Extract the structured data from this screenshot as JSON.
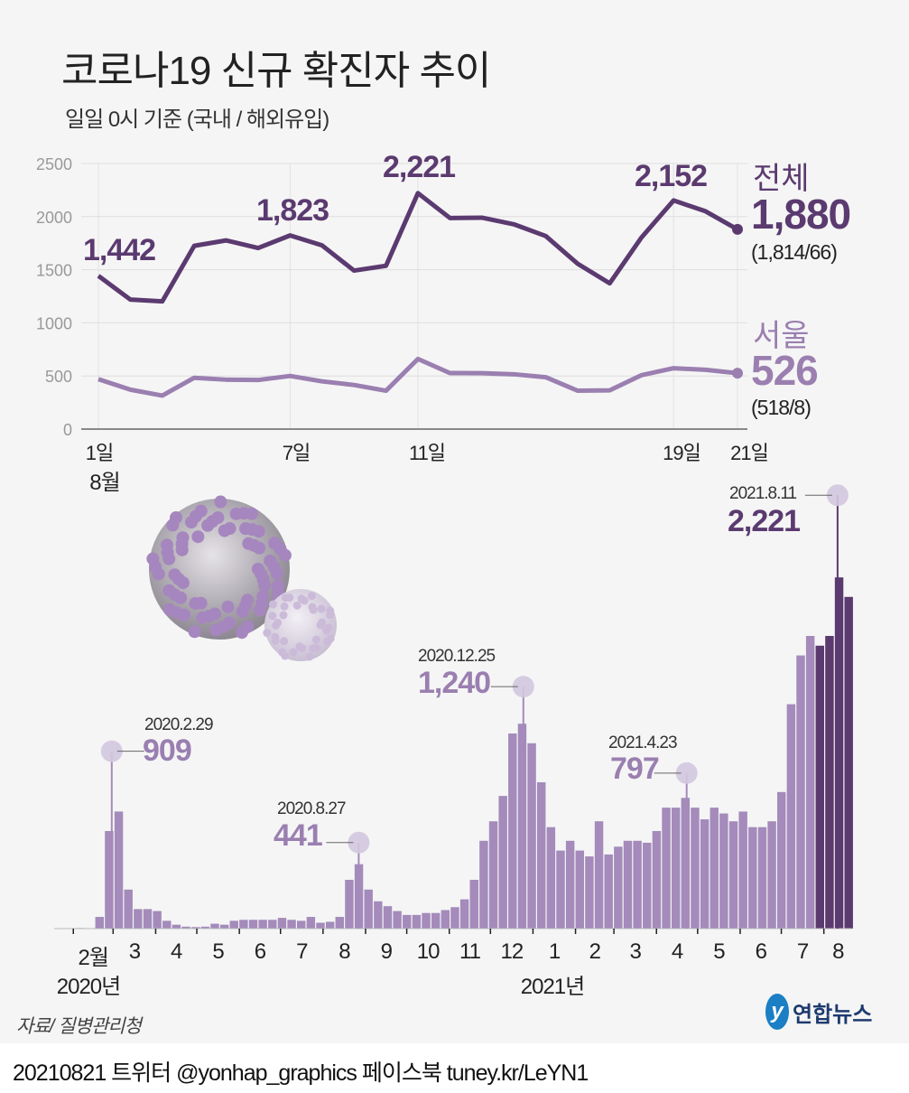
{
  "title": "코로나19 신규 확진자 추이",
  "subtitle": "일일 0시 기준 (국내 / 해외유입)",
  "colors": {
    "total": "#5b3a70",
    "seoul": "#9a7fb0",
    "bars": "#a48bbb",
    "bars_recent": "#5b3a70",
    "marker": "#d3c8df",
    "background": "#f5f5f5"
  },
  "chart_data": [
    {
      "type": "line",
      "xlabel": "",
      "ylabel": "",
      "x": [
        1,
        2,
        3,
        4,
        5,
        6,
        7,
        8,
        9,
        10,
        11,
        12,
        13,
        14,
        15,
        16,
        17,
        18,
        19,
        20,
        21
      ],
      "x_tick_labels": [
        {
          "day": 1,
          "label": "1일"
        },
        {
          "day": 7,
          "label": "7일"
        },
        {
          "day": 11,
          "label": "11일"
        },
        {
          "day": 19,
          "label": "19일"
        },
        {
          "day": 21,
          "label": "21일"
        }
      ],
      "month_label": "8월",
      "y_ticks": [
        0,
        500,
        1000,
        1500,
        2000,
        2500
      ],
      "ylim": [
        0,
        2500
      ],
      "grid": true,
      "series": [
        {
          "name": "전체",
          "values": [
            1442,
            1219,
            1202,
            1725,
            1776,
            1704,
            1823,
            1729,
            1492,
            1537,
            2221,
            1987,
            1990,
            1928,
            1817,
            1556,
            1372,
            1805,
            2152,
            2050,
            1880
          ],
          "latest": "1,880",
          "latest_breakdown": "(1,814/66)",
          "labels": [
            {
              "day": 1,
              "text": "1,442"
            },
            {
              "day": 7,
              "text": "1,823"
            },
            {
              "day": 11,
              "text": "2,221"
            },
            {
              "day": 19,
              "text": "2,152"
            }
          ]
        },
        {
          "name": "서울",
          "values": [
            470,
            371,
            315,
            483,
            465,
            462,
            500,
            449,
            415,
            361,
            660,
            527,
            526,
            516,
            488,
            361,
            365,
            508,
            573,
            558,
            526
          ],
          "latest": "526",
          "latest_breakdown": "(518/8)"
        }
      ]
    },
    {
      "type": "bar",
      "granularity": "weekly average (approx.)",
      "start": "2020-01-20",
      "ylim": [
        0,
        2300
      ],
      "values": [
        1,
        2,
        3,
        1,
        60,
        500,
        600,
        200,
        100,
        100,
        90,
        40,
        20,
        10,
        8,
        10,
        25,
        20,
        40,
        45,
        45,
        45,
        45,
        55,
        45,
        40,
        60,
        30,
        35,
        60,
        250,
        330,
        200,
        140,
        115,
        90,
        70,
        70,
        80,
        80,
        95,
        110,
        150,
        250,
        450,
        550,
        680,
        1000,
        1050,
        950,
        750,
        520,
        400,
        450,
        400,
        370,
        550,
        380,
        420,
        450,
        450,
        440,
        500,
        620,
        620,
        670,
        620,
        560,
        620,
        590,
        550,
        600,
        520,
        520,
        550,
        700,
        1150,
        1400,
        1500,
        1450,
        1500,
        1800,
        1700
      ],
      "recent_from": "2021-08-01",
      "month_labels": [
        "2월",
        "3",
        "4",
        "5",
        "6",
        "7",
        "8",
        "9",
        "10",
        "11",
        "12",
        "1",
        "2",
        "3",
        "4",
        "5",
        "6",
        "7",
        "8"
      ],
      "year_labels": [
        "2020년",
        "2021년"
      ],
      "annotations": [
        {
          "date": "2020.2.29",
          "value": "909",
          "n": 909
        },
        {
          "date": "2020.8.27",
          "value": "441",
          "n": 441
        },
        {
          "date": "2020.12.25",
          "value": "1,240",
          "n": 1240
        },
        {
          "date": "2021.4.23",
          "value": "797",
          "n": 797
        },
        {
          "date": "2021.8.11",
          "value": "2,221",
          "n": 2221
        }
      ]
    }
  ],
  "source": "자료/ 질병관리청",
  "logo": "연합뉴스",
  "footer": "20210821 트위터 @yonhap_graphics  페이스북 tuney.kr/LeYN1"
}
